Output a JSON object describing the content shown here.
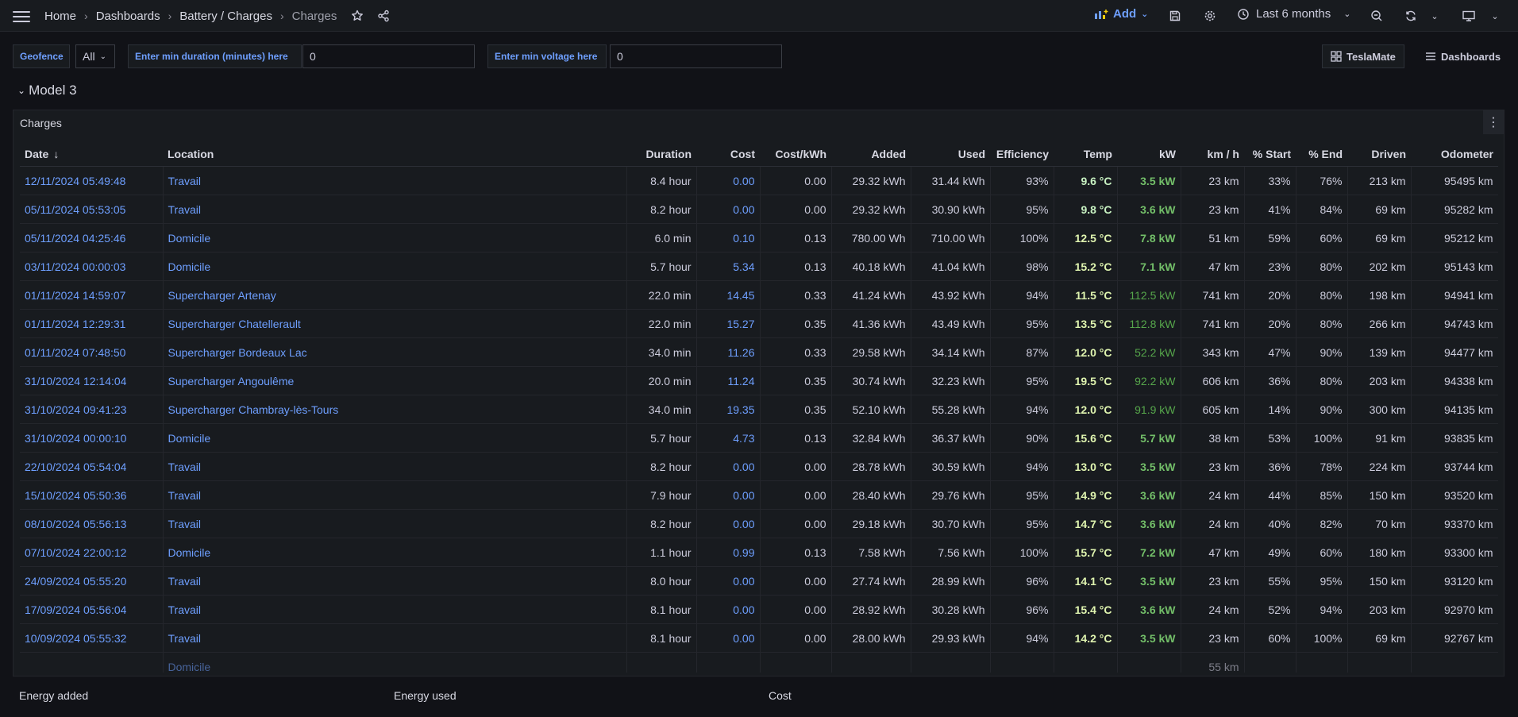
{
  "breadcrumb": [
    "Home",
    "Dashboards",
    "Battery / Charges",
    "Charges"
  ],
  "toolbar": {
    "add_label": "Add",
    "time_range": "Last 6 months"
  },
  "variables": {
    "geofence_label": "Geofence",
    "geofence_value": "All",
    "min_duration_label": "Enter min duration (minutes) here",
    "min_duration_value": "0",
    "min_voltage_label": "Enter min voltage here",
    "min_voltage_value": "0"
  },
  "links": {
    "teslamate": "TeslaMate",
    "dashboards": "Dashboards"
  },
  "row_title": "Model 3",
  "panel": {
    "title": "Charges"
  },
  "table": {
    "columns": [
      "Date",
      "Location",
      "Duration",
      "Cost",
      "Cost/kWh",
      "Added",
      "Used",
      "Efficiency",
      "Temp",
      "kW",
      "km / h",
      "% Start",
      "% End",
      "Driven",
      "Odometer"
    ],
    "rows": [
      [
        "12/11/2024 05:49:48",
        "Travail",
        "8.4 hour",
        "0.00",
        "0.00",
        "29.32 kWh",
        "31.44 kWh",
        "93%",
        "9.6 °C",
        "3.5 kW",
        "23 km",
        "33%",
        "76%",
        "213 km",
        "95495 km"
      ],
      [
        "05/11/2024 05:53:05",
        "Travail",
        "8.2 hour",
        "0.00",
        "0.00",
        "29.32 kWh",
        "30.90 kWh",
        "95%",
        "9.8 °C",
        "3.6 kW",
        "23 km",
        "41%",
        "84%",
        "69 km",
        "95282 km"
      ],
      [
        "05/11/2024 04:25:46",
        "Domicile",
        "6.0 min",
        "0.10",
        "0.13",
        "780.00 Wh",
        "710.00 Wh",
        "100%",
        "12.5 °C",
        "7.8 kW",
        "51 km",
        "59%",
        "60%",
        "69 km",
        "95212 km"
      ],
      [
        "03/11/2024 00:00:03",
        "Domicile",
        "5.7 hour",
        "5.34",
        "0.13",
        "40.18 kWh",
        "41.04 kWh",
        "98%",
        "15.2 °C",
        "7.1 kW",
        "47 km",
        "23%",
        "80%",
        "202 km",
        "95143 km"
      ],
      [
        "01/11/2024 14:59:07",
        "Supercharger Artenay",
        "22.0 min",
        "14.45",
        "0.33",
        "41.24 kWh",
        "43.92 kWh",
        "94%",
        "11.5 °C",
        "112.5 kW",
        "741 km",
        "20%",
        "80%",
        "198 km",
        "94941 km"
      ],
      [
        "01/11/2024 12:29:31",
        "Supercharger Chatellerault",
        "22.0 min",
        "15.27",
        "0.35",
        "41.36 kWh",
        "43.49 kWh",
        "95%",
        "13.5 °C",
        "112.8 kW",
        "741 km",
        "20%",
        "80%",
        "266 km",
        "94743 km"
      ],
      [
        "01/11/2024 07:48:50",
        "Supercharger Bordeaux Lac",
        "34.0 min",
        "11.26",
        "0.33",
        "29.58 kWh",
        "34.14 kWh",
        "87%",
        "12.0 °C",
        "52.2 kW",
        "343 km",
        "47%",
        "90%",
        "139 km",
        "94477 km"
      ],
      [
        "31/10/2024 12:14:04",
        "Supercharger Angoulême",
        "20.0 min",
        "11.24",
        "0.35",
        "30.74 kWh",
        "32.23 kWh",
        "95%",
        "19.5 °C",
        "92.2 kW",
        "606 km",
        "36%",
        "80%",
        "203 km",
        "94338 km"
      ],
      [
        "31/10/2024 09:41:23",
        "Supercharger Chambray-lès-Tours",
        "34.0 min",
        "19.35",
        "0.35",
        "52.10 kWh",
        "55.28 kWh",
        "94%",
        "12.0 °C",
        "91.9 kW",
        "605 km",
        "14%",
        "90%",
        "300 km",
        "94135 km"
      ],
      [
        "31/10/2024 00:00:10",
        "Domicile",
        "5.7 hour",
        "4.73",
        "0.13",
        "32.84 kWh",
        "36.37 kWh",
        "90%",
        "15.6 °C",
        "5.7 kW",
        "38 km",
        "53%",
        "100%",
        "91 km",
        "93835 km"
      ],
      [
        "22/10/2024 05:54:04",
        "Travail",
        "8.2 hour",
        "0.00",
        "0.00",
        "28.78 kWh",
        "30.59 kWh",
        "94%",
        "13.0 °C",
        "3.5 kW",
        "23 km",
        "36%",
        "78%",
        "224 km",
        "93744 km"
      ],
      [
        "15/10/2024 05:50:36",
        "Travail",
        "7.9 hour",
        "0.00",
        "0.00",
        "28.40 kWh",
        "29.76 kWh",
        "95%",
        "14.9 °C",
        "3.6 kW",
        "24 km",
        "44%",
        "85%",
        "150 km",
        "93520 km"
      ],
      [
        "08/10/2024 05:56:13",
        "Travail",
        "8.2 hour",
        "0.00",
        "0.00",
        "29.18 kWh",
        "30.70 kWh",
        "95%",
        "14.7 °C",
        "3.6 kW",
        "24 km",
        "40%",
        "82%",
        "70 km",
        "93370 km"
      ],
      [
        "07/10/2024 22:00:12",
        "Domicile",
        "1.1 hour",
        "0.99",
        "0.13",
        "7.58 kWh",
        "7.56 kWh",
        "100%",
        "15.7 °C",
        "7.2 kW",
        "47 km",
        "49%",
        "60%",
        "180 km",
        "93300 km"
      ],
      [
        "24/09/2024 05:55:20",
        "Travail",
        "8.0 hour",
        "0.00",
        "0.00",
        "27.74 kWh",
        "28.99 kWh",
        "96%",
        "14.1 °C",
        "3.5 kW",
        "23 km",
        "55%",
        "95%",
        "150 km",
        "93120 km"
      ],
      [
        "17/09/2024 05:56:04",
        "Travail",
        "8.1 hour",
        "0.00",
        "0.00",
        "28.92 kWh",
        "30.28 kWh",
        "96%",
        "15.4 °C",
        "3.6 kW",
        "24 km",
        "52%",
        "94%",
        "203 km",
        "92970 km"
      ],
      [
        "10/09/2024 05:55:32",
        "Travail",
        "8.1 hour",
        "0.00",
        "0.00",
        "28.00 kWh",
        "29.93 kWh",
        "94%",
        "14.2 °C",
        "3.5 kW",
        "23 km",
        "60%",
        "100%",
        "69 km",
        "92767 km"
      ],
      [
        "",
        "Domicile",
        "",
        "",
        "",
        "",
        "",
        "",
        "",
        "",
        "55 km",
        "",
        "",
        "",
        ""
      ]
    ]
  },
  "bottom_panels": [
    "Energy added",
    "Energy used",
    "Cost"
  ],
  "colors": {
    "link": "#6e9fff",
    "temp_cold": "#c8f2c2",
    "temp_mild": "#e0f5b0",
    "power_low": "#73bf69",
    "power_high": "#56a64b"
  },
  "icons": [
    "menu-icon",
    "star-icon",
    "share-icon",
    "add-panel-icon",
    "save-icon",
    "gear-icon",
    "clock-icon",
    "zoom-out-icon",
    "refresh-icon",
    "tv-icon",
    "grid-icon",
    "list-icon",
    "kebab-icon",
    "sort-desc-icon",
    "chevron-down-icon"
  ]
}
